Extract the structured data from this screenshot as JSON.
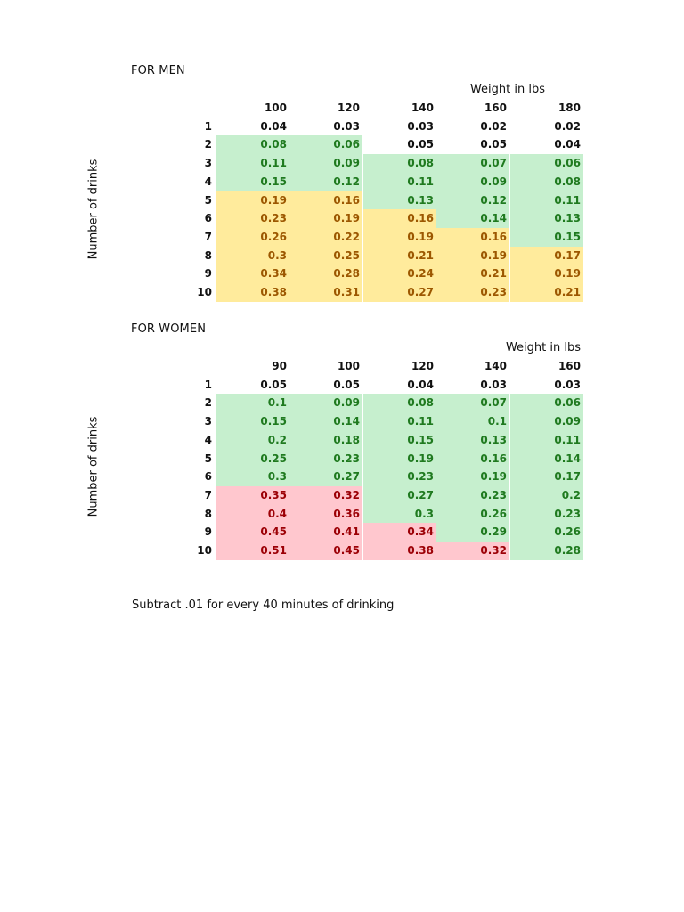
{
  "men": {
    "title": "FOR MEN",
    "weight_label": "Weight in lbs",
    "y_label": "Number of drinks",
    "weights": [
      "100",
      "120",
      "140",
      "160",
      "180"
    ],
    "rows": [
      {
        "drinks": "1",
        "values": [
          "0.04",
          "0.03",
          "0.03",
          "0.02",
          "0.02"
        ],
        "zones": [
          "none",
          "none",
          "none",
          "none",
          "none"
        ]
      },
      {
        "drinks": "2",
        "values": [
          "0.08",
          "0.06",
          "0.05",
          "0.05",
          "0.04"
        ],
        "zones": [
          "green",
          "green",
          "none",
          "none",
          "none"
        ]
      },
      {
        "drinks": "3",
        "values": [
          "0.11",
          "0.09",
          "0.08",
          "0.07",
          "0.06"
        ],
        "zones": [
          "green",
          "green",
          "green",
          "green",
          "green"
        ]
      },
      {
        "drinks": "4",
        "values": [
          "0.15",
          "0.12",
          "0.11",
          "0.09",
          "0.08"
        ],
        "zones": [
          "green",
          "green",
          "green",
          "green",
          "green"
        ]
      },
      {
        "drinks": "5",
        "values": [
          "0.19",
          "0.16",
          "0.13",
          "0.12",
          "0.11"
        ],
        "zones": [
          "yellow",
          "yellow",
          "green",
          "green",
          "green"
        ]
      },
      {
        "drinks": "6",
        "values": [
          "0.23",
          "0.19",
          "0.16",
          "0.14",
          "0.13"
        ],
        "zones": [
          "yellow",
          "yellow",
          "yellow",
          "green",
          "green"
        ]
      },
      {
        "drinks": "7",
        "values": [
          "0.26",
          "0.22",
          "0.19",
          "0.16",
          "0.15"
        ],
        "zones": [
          "yellow",
          "yellow",
          "yellow",
          "yellow",
          "green"
        ]
      },
      {
        "drinks": "8",
        "values": [
          "0.3",
          "0.25",
          "0.21",
          "0.19",
          "0.17"
        ],
        "zones": [
          "yellow",
          "yellow",
          "yellow",
          "yellow",
          "yellow"
        ]
      },
      {
        "drinks": "9",
        "values": [
          "0.34",
          "0.28",
          "0.24",
          "0.21",
          "0.19"
        ],
        "zones": [
          "yellow",
          "yellow",
          "yellow",
          "yellow",
          "yellow"
        ]
      },
      {
        "drinks": "10",
        "values": [
          "0.38",
          "0.31",
          "0.27",
          "0.23",
          "0.21"
        ],
        "zones": [
          "yellow",
          "yellow",
          "yellow",
          "yellow",
          "yellow"
        ]
      }
    ]
  },
  "women": {
    "title": "FOR WOMEN",
    "weight_label": "Weight in lbs",
    "y_label": "Number of drinks",
    "weights": [
      "90",
      "100",
      "120",
      "140",
      "160"
    ],
    "rows": [
      {
        "drinks": "1",
        "values": [
          "0.05",
          "0.05",
          "0.04",
          "0.03",
          "0.03"
        ],
        "zones": [
          "none",
          "none",
          "none",
          "none",
          "none"
        ]
      },
      {
        "drinks": "2",
        "values": [
          "0.1",
          "0.09",
          "0.08",
          "0.07",
          "0.06"
        ],
        "zones": [
          "green",
          "green",
          "green",
          "green",
          "green"
        ]
      },
      {
        "drinks": "3",
        "values": [
          "0.15",
          "0.14",
          "0.11",
          "0.1",
          "0.09"
        ],
        "zones": [
          "green",
          "green",
          "green",
          "green",
          "green"
        ]
      },
      {
        "drinks": "4",
        "values": [
          "0.2",
          "0.18",
          "0.15",
          "0.13",
          "0.11"
        ],
        "zones": [
          "green",
          "green",
          "green",
          "green",
          "green"
        ]
      },
      {
        "drinks": "5",
        "values": [
          "0.25",
          "0.23",
          "0.19",
          "0.16",
          "0.14"
        ],
        "zones": [
          "green",
          "green",
          "green",
          "green",
          "green"
        ]
      },
      {
        "drinks": "6",
        "values": [
          "0.3",
          "0.27",
          "0.23",
          "0.19",
          "0.17"
        ],
        "zones": [
          "green",
          "green",
          "green",
          "green",
          "green"
        ]
      },
      {
        "drinks": "7",
        "values": [
          "0.35",
          "0.32",
          "0.27",
          "0.23",
          "0.2"
        ],
        "zones": [
          "red",
          "red",
          "green",
          "green",
          "green"
        ]
      },
      {
        "drinks": "8",
        "values": [
          "0.4",
          "0.36",
          "0.3",
          "0.26",
          "0.23"
        ],
        "zones": [
          "red",
          "red",
          "green",
          "green",
          "green"
        ]
      },
      {
        "drinks": "9",
        "values": [
          "0.45",
          "0.41",
          "0.34",
          "0.29",
          "0.26"
        ],
        "zones": [
          "red",
          "red",
          "red",
          "green",
          "green"
        ]
      },
      {
        "drinks": "10",
        "values": [
          "0.51",
          "0.45",
          "0.38",
          "0.32",
          "0.28"
        ],
        "zones": [
          "red",
          "red",
          "red",
          "red",
          "green"
        ]
      }
    ]
  },
  "note": "Subtract .01 for every 40 minutes of drinking",
  "colors": {
    "green_fill": "#c6efce",
    "green_text": "#1f7a1f",
    "yellow_fill": "#ffeb9c",
    "yellow_text": "#9c5700",
    "red_fill": "#ffc7ce",
    "red_text": "#9c0006"
  }
}
